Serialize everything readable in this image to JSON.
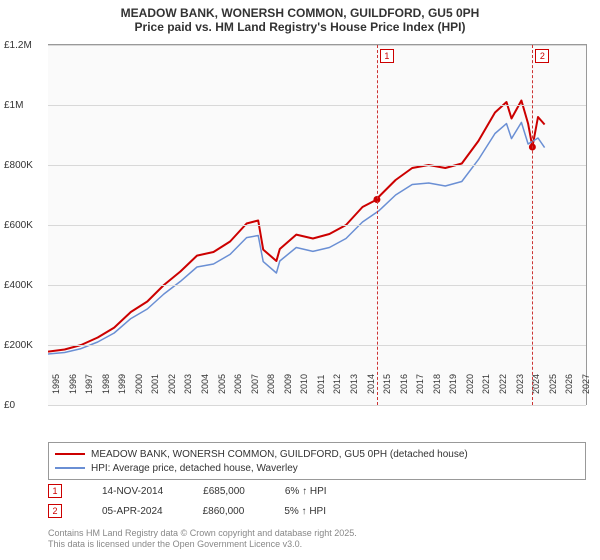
{
  "title": {
    "line1": "MEADOW BANK, WONERSH COMMON, GUILDFORD, GU5 0PH",
    "line2": "Price paid vs. HM Land Registry's House Price Index (HPI)",
    "fontsize": 12,
    "color": "#333333"
  },
  "chart": {
    "type": "line",
    "background": "#fafafa",
    "grid_color": "#d8d8d8",
    "ylim": [
      0,
      1200000
    ],
    "ytick_step": 200000,
    "yticks": [
      {
        "v": 0,
        "label": "£0"
      },
      {
        "v": 200000,
        "label": "£200K"
      },
      {
        "v": 400000,
        "label": "£400K"
      },
      {
        "v": 600000,
        "label": "£600K"
      },
      {
        "v": 800000,
        "label": "£800K"
      },
      {
        "v": 1000000,
        "label": "£1M"
      },
      {
        "v": 1200000,
        "label": "£1.2M"
      }
    ],
    "xlim": [
      1995,
      2027.5
    ],
    "xticks": [
      1995,
      1996,
      1997,
      1998,
      1999,
      2000,
      2001,
      2002,
      2003,
      2004,
      2005,
      2006,
      2007,
      2008,
      2009,
      2010,
      2011,
      2012,
      2013,
      2014,
      2015,
      2016,
      2017,
      2018,
      2019,
      2020,
      2021,
      2022,
      2023,
      2024,
      2025,
      2026,
      2027
    ],
    "series": [
      {
        "name": "MEADOW BANK, WONERSH COMMON, GUILDFORD, GU5 0PH (detached house)",
        "color": "#cc0000",
        "width": 2,
        "points": [
          [
            1995,
            178000
          ],
          [
            1996,
            185000
          ],
          [
            1997,
            200000
          ],
          [
            1998,
            225000
          ],
          [
            1999,
            258000
          ],
          [
            2000,
            310000
          ],
          [
            2001,
            345000
          ],
          [
            2002,
            400000
          ],
          [
            2003,
            445000
          ],
          [
            2004,
            498000
          ],
          [
            2005,
            510000
          ],
          [
            2006,
            545000
          ],
          [
            2007,
            605000
          ],
          [
            2007.7,
            615000
          ],
          [
            2008,
            518000
          ],
          [
            2008.8,
            480000
          ],
          [
            2009,
            520000
          ],
          [
            2010,
            568000
          ],
          [
            2011,
            555000
          ],
          [
            2012,
            570000
          ],
          [
            2013,
            600000
          ],
          [
            2014,
            660000
          ],
          [
            2014.87,
            685000
          ],
          [
            2015,
            695000
          ],
          [
            2016,
            750000
          ],
          [
            2017,
            790000
          ],
          [
            2018,
            800000
          ],
          [
            2019,
            790000
          ],
          [
            2020,
            805000
          ],
          [
            2021,
            880000
          ],
          [
            2022,
            975000
          ],
          [
            2022.7,
            1010000
          ],
          [
            2023,
            955000
          ],
          [
            2023.6,
            1015000
          ],
          [
            2024,
            938000
          ],
          [
            2024.26,
            860000
          ],
          [
            2024.6,
            960000
          ],
          [
            2025.0,
            935000
          ]
        ]
      },
      {
        "name": "HPI: Average price, detached house, Waverley",
        "color": "#6a8fd4",
        "width": 1.5,
        "points": [
          [
            1995,
            170000
          ],
          [
            1996,
            175000
          ],
          [
            1997,
            188000
          ],
          [
            1998,
            210000
          ],
          [
            1999,
            240000
          ],
          [
            2000,
            288000
          ],
          [
            2001,
            320000
          ],
          [
            2002,
            370000
          ],
          [
            2003,
            412000
          ],
          [
            2004,
            460000
          ],
          [
            2005,
            470000
          ],
          [
            2006,
            502000
          ],
          [
            2007,
            558000
          ],
          [
            2007.7,
            565000
          ],
          [
            2008,
            478000
          ],
          [
            2008.8,
            440000
          ],
          [
            2009,
            480000
          ],
          [
            2010,
            525000
          ],
          [
            2011,
            512000
          ],
          [
            2012,
            525000
          ],
          [
            2013,
            555000
          ],
          [
            2014,
            610000
          ],
          [
            2015,
            648000
          ],
          [
            2016,
            700000
          ],
          [
            2017,
            735000
          ],
          [
            2018,
            740000
          ],
          [
            2019,
            730000
          ],
          [
            2020,
            745000
          ],
          [
            2021,
            818000
          ],
          [
            2022,
            905000
          ],
          [
            2022.7,
            938000
          ],
          [
            2023,
            888000
          ],
          [
            2023.6,
            942000
          ],
          [
            2024,
            870000
          ],
          [
            2024.6,
            890000
          ],
          [
            2025.0,
            858000
          ]
        ]
      }
    ],
    "markers": [
      {
        "id": "1",
        "x": 2014.87,
        "y": 685000
      },
      {
        "id": "2",
        "x": 2024.26,
        "y": 860000
      }
    ]
  },
  "legend": {
    "items": [
      {
        "label": "MEADOW BANK, WONERSH COMMON, GUILDFORD, GU5 0PH (detached house)",
        "color": "#cc0000",
        "width": 2
      },
      {
        "label": "HPI: Average price, detached house, Waverley",
        "color": "#6a8fd4",
        "width": 1.5
      }
    ]
  },
  "info_rows": [
    {
      "marker": "1",
      "date": "14-NOV-2014",
      "price": "£685,000",
      "delta": "6% ↑ HPI"
    },
    {
      "marker": "2",
      "date": "05-APR-2024",
      "price": "£860,000",
      "delta": "5% ↑ HPI"
    }
  ],
  "credits": {
    "line1": "Contains HM Land Registry data © Crown copyright and database right 2025.",
    "line2": "This data is licensed under the Open Government Licence v3.0."
  }
}
